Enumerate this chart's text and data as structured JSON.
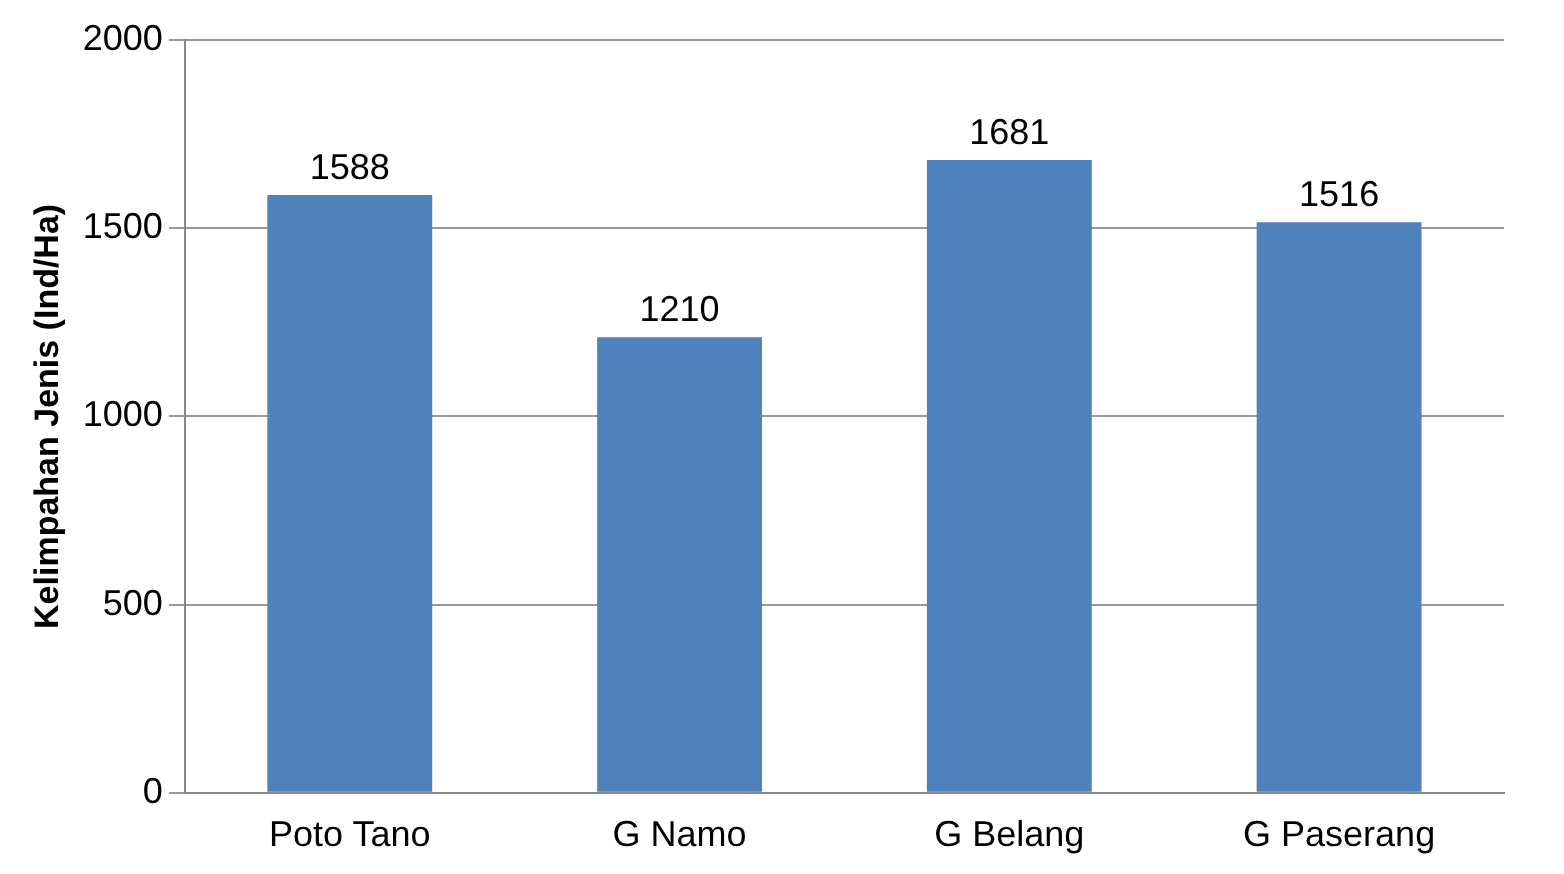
{
  "chart_data": {
    "type": "bar",
    "ylabel": "Kelimpahan Jenis (Ind/Ha)",
    "categories": [
      "Poto Tano",
      "G Namo",
      "G Belang",
      "G Paserang"
    ],
    "values": [
      1588,
      1210,
      1681,
      1516
    ],
    "color": "#4f81bd",
    "ylim": [
      0,
      2000
    ],
    "yticks": [
      0,
      500,
      1000,
      1500,
      2000
    ],
    "grid": "y",
    "data_labels": true
  }
}
